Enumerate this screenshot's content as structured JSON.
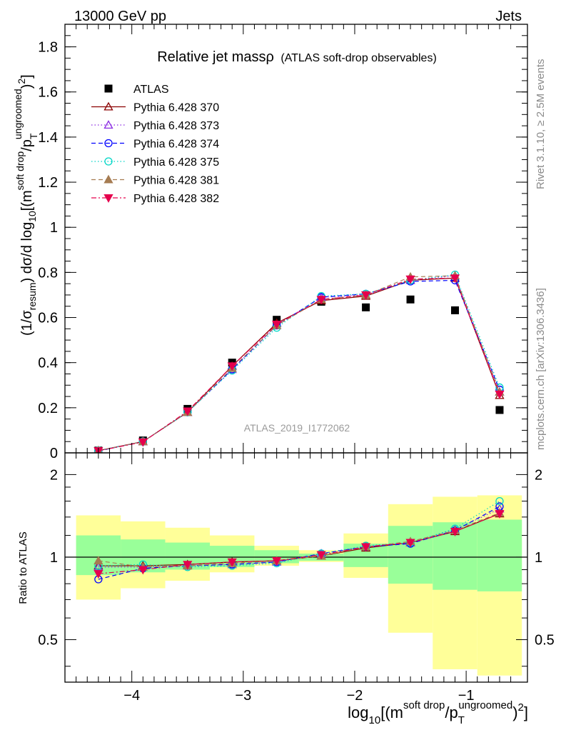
{
  "header": {
    "left": "13000 GeV pp",
    "right": "Jets"
  },
  "side_labels": {
    "rivet": "Rivet 3.1.10, ≥ 2.5M events",
    "mcplots": "mcplots.cern.ch [arXiv:1306.3436]"
  },
  "colors": {
    "ATLAS": "#000000",
    "370": "#8b0000",
    "373": "#8a2be2",
    "374": "#0000ff",
    "375": "#00d6c6",
    "381": "#a67c52",
    "382": "#e5004d",
    "band_inner": "#99ff99",
    "band_outer": "#ffff99"
  },
  "chart_data": [
    {
      "type": "line",
      "title_main": "Relative jet massρ",
      "title_sub": "(ATLAS soft-drop observables)",
      "analysis_tag": "ATLAS_2019_I1772062",
      "ylabel": "(1/σresum) dσ/d log10[(msoft drop/pTungroomed)2]",
      "xlim": [
        -4.6,
        -0.45
      ],
      "ylim": [
        0,
        1.9
      ],
      "yticks": [
        0,
        0.2,
        0.4,
        0.6,
        0.8,
        1,
        1.2,
        1.4,
        1.6,
        1.8
      ],
      "ytick_labels": [
        "0",
        "0.2",
        "0.4",
        "0.6",
        "0.8",
        "1",
        "1.2",
        "1.4",
        "1.6",
        "1.8"
      ],
      "legend_position": "top-left",
      "x": [
        -4.3,
        -3.9,
        -3.5,
        -3.1,
        -2.7,
        -2.3,
        -1.9,
        -1.5,
        -1.1,
        -0.7
      ],
      "series": [
        {
          "name": "ATLAS",
          "marker": "square",
          "values": [
            0.01,
            0.055,
            0.195,
            0.4,
            0.59,
            0.67,
            0.645,
            0.68,
            0.632,
            0.19
          ]
        },
        {
          "name": "Pythia 6.428 370",
          "marker": "triangle-up-open",
          "dash": "solid",
          "values": [
            0.01,
            0.05,
            0.18,
            0.385,
            0.575,
            0.675,
            0.695,
            0.765,
            0.775,
            0.255
          ]
        },
        {
          "name": "Pythia 6.428 373",
          "marker": "triangle-up-open",
          "dash": "dotted",
          "values": [
            0.01,
            0.05,
            0.18,
            0.37,
            0.565,
            0.69,
            0.7,
            0.765,
            0.785,
            0.27
          ]
        },
        {
          "name": "Pythia 6.428 374",
          "marker": "circle-open",
          "dash": "dashed",
          "values": [
            0.008,
            0.05,
            0.18,
            0.37,
            0.565,
            0.69,
            0.705,
            0.76,
            0.765,
            0.28
          ]
        },
        {
          "name": "Pythia 6.428 375",
          "marker": "circle-open",
          "dash": "dotted",
          "values": [
            0.01,
            0.05,
            0.18,
            0.365,
            0.555,
            0.695,
            0.705,
            0.765,
            0.79,
            0.29
          ]
        },
        {
          "name": "Pythia 6.428 381",
          "marker": "triangle-up",
          "dash": "dashed",
          "values": [
            0.01,
            0.05,
            0.18,
            0.375,
            0.565,
            0.68,
            0.7,
            0.78,
            0.785,
            0.27
          ]
        },
        {
          "name": "Pythia 6.428 382",
          "marker": "triangle-down",
          "dash": "dashdot",
          "values": [
            0.009,
            0.048,
            0.185,
            0.385,
            0.57,
            0.68,
            0.7,
            0.77,
            0.775,
            0.26
          ]
        }
      ]
    },
    {
      "type": "line",
      "ylabel": "Ratio to ATLAS",
      "xlabel": "log10[(msoft drop/pTungroomed)2]",
      "xlim": [
        -4.6,
        -0.45
      ],
      "ylim": [
        0.35,
        2.4
      ],
      "log_y": true,
      "yticks": [
        0.5,
        1,
        2
      ],
      "ytick_labels": [
        "0.5",
        "1",
        "2"
      ],
      "xticks": [
        -4,
        -3,
        -2,
        -1
      ],
      "xtick_labels": [
        "−4",
        "−3",
        "−2",
        "−1"
      ],
      "bins": [
        [
          -4.5,
          -4.1
        ],
        [
          -4.1,
          -3.7
        ],
        [
          -3.7,
          -3.3
        ],
        [
          -3.3,
          -2.9
        ],
        [
          -2.9,
          -2.5
        ],
        [
          -2.5,
          -2.1
        ],
        [
          -2.1,
          -1.7
        ],
        [
          -1.7,
          -1.3
        ],
        [
          -1.3,
          -0.9
        ],
        [
          -0.9,
          -0.5
        ]
      ],
      "band_inner": [
        [
          0.86,
          1.2
        ],
        [
          0.88,
          1.16
        ],
        [
          0.9,
          1.13
        ],
        [
          0.92,
          1.1
        ],
        [
          0.95,
          1.06
        ],
        [
          0.97,
          1.03
        ],
        [
          0.92,
          1.12
        ],
        [
          0.8,
          1.3
        ],
        [
          0.76,
          1.34
        ],
        [
          0.75,
          1.37
        ]
      ],
      "band_outer": [
        [
          0.7,
          1.42
        ],
        [
          0.77,
          1.35
        ],
        [
          0.82,
          1.28
        ],
        [
          0.88,
          1.2
        ],
        [
          0.93,
          1.1
        ],
        [
          0.96,
          1.06
        ],
        [
          0.84,
          1.22
        ],
        [
          0.53,
          1.56
        ],
        [
          0.39,
          1.66
        ],
        [
          0.37,
          1.68
        ]
      ],
      "x": [
        -4.3,
        -3.9,
        -3.5,
        -3.1,
        -2.7,
        -2.3,
        -1.9,
        -1.5,
        -1.1,
        -0.7
      ],
      "series": [
        {
          "name": "Pythia 6.428 370",
          "values": [
            0.93,
            0.93,
            0.94,
            0.96,
            0.97,
            1.01,
            1.08,
            1.13,
            1.24,
            1.44
          ]
        },
        {
          "name": "Pythia 6.428 373",
          "values": [
            0.92,
            0.92,
            0.93,
            0.94,
            0.96,
            1.03,
            1.09,
            1.13,
            1.26,
            1.5
          ]
        },
        {
          "name": "Pythia 6.428 374",
          "values": [
            0.83,
            0.91,
            0.93,
            0.94,
            0.96,
            1.03,
            1.09,
            1.12,
            1.25,
            1.53
          ]
        },
        {
          "name": "Pythia 6.428 375",
          "values": [
            0.93,
            0.94,
            0.92,
            0.93,
            0.95,
            1.03,
            1.1,
            1.13,
            1.27,
            1.6
          ]
        },
        {
          "name": "Pythia 6.428 381",
          "values": [
            0.97,
            0.92,
            0.93,
            0.95,
            0.97,
            1.01,
            1.09,
            1.14,
            1.25,
            1.45
          ]
        },
        {
          "name": "Pythia 6.428 382",
          "values": [
            0.87,
            0.9,
            0.94,
            0.96,
            0.97,
            1.02,
            1.09,
            1.13,
            1.24,
            1.44
          ]
        }
      ]
    }
  ]
}
